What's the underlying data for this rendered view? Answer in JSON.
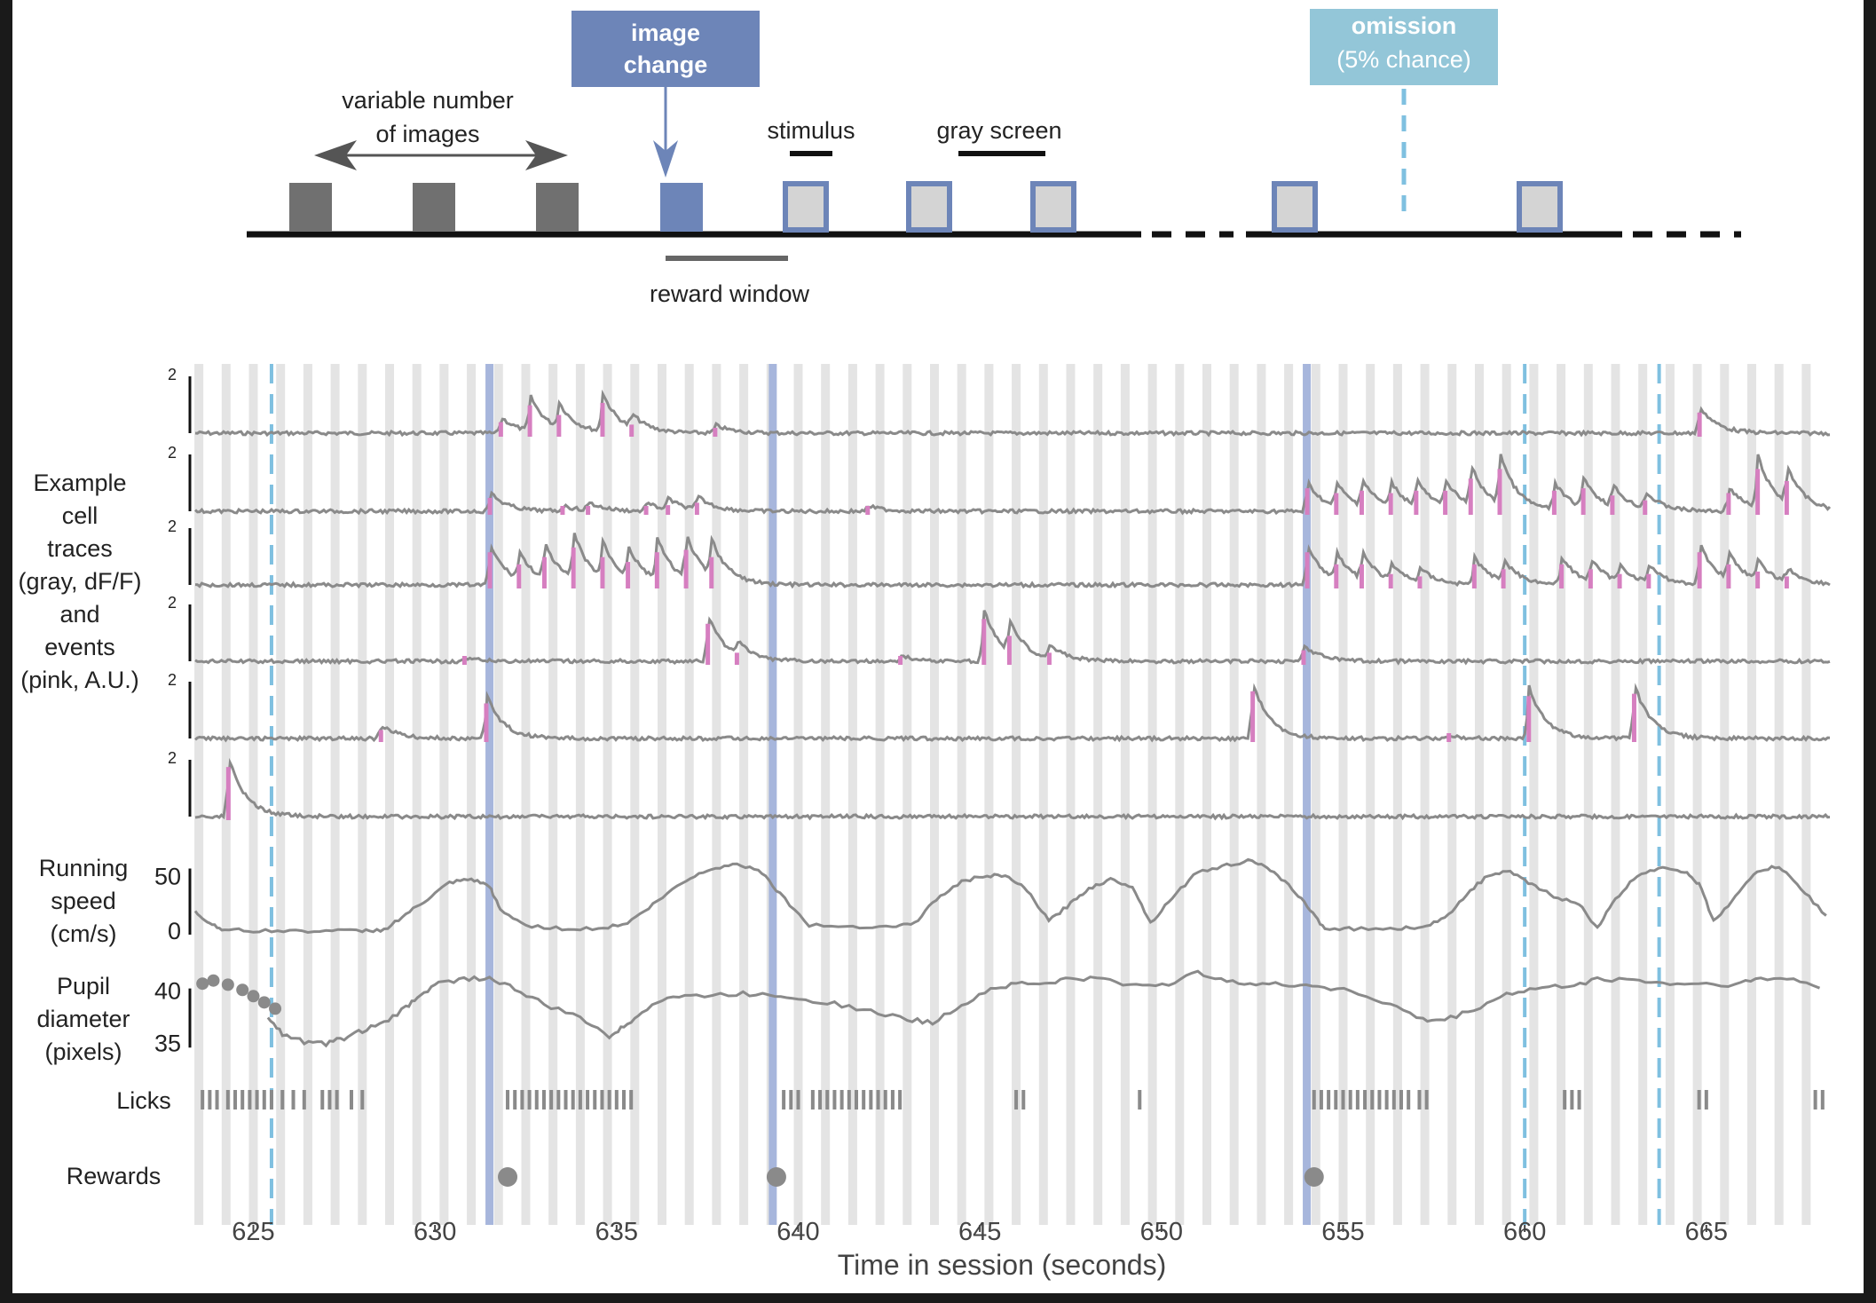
{
  "schematic": {
    "image_change": [
      "image",
      "change"
    ],
    "omission": [
      "omission",
      "(5% chance)"
    ],
    "variable_number": [
      "variable number",
      "of images"
    ],
    "stimulus": "stimulus",
    "gray_screen": "gray screen",
    "reward_window": "reward window"
  },
  "row_labels": {
    "cells": [
      "Example",
      "cell",
      "traces",
      "(gray, dF/F)",
      "and",
      "events",
      "(pink, A.U.)"
    ],
    "running": [
      "Running",
      "speed",
      "(cm/s)"
    ],
    "pupil": [
      "Pupil",
      "diameter",
      "(pixels)"
    ],
    "licks": "Licks",
    "rewards": "Rewards"
  },
  "colors": {
    "image_change": "#6d85b8",
    "omission": "#93c6d8",
    "omission_line": "#7fc0e0",
    "stim_bar": "#e4e4e4",
    "change_line": "#a7b6dc",
    "trace": "#8a8a8a",
    "event": "#d67fc0",
    "gray_image": "#707070"
  },
  "chart_data": {
    "type": "line",
    "xlabel": "Time in session (seconds)",
    "xlim": [
      623.4,
      668.4
    ],
    "xticks": [
      625,
      630,
      635,
      640,
      645,
      650,
      655,
      660,
      665
    ],
    "stimulus_onsets_s": [
      623.5,
      624.25,
      625.0,
      625.75,
      626.5,
      627.25,
      628.0,
      628.75,
      629.5,
      630.25,
      631.0,
      631.75,
      632.5,
      633.25,
      634.0,
      634.75,
      635.5,
      636.25,
      637.0,
      637.75,
      638.5,
      639.25,
      640.0,
      640.75,
      641.5,
      642.25,
      643.0,
      643.75,
      644.5,
      645.25,
      646.0,
      646.75,
      647.5,
      648.25,
      649.0,
      649.75,
      650.5,
      651.25,
      652.0,
      652.75,
      653.5,
      654.25,
      655.0,
      655.75,
      656.5,
      657.25,
      658.0,
      658.75,
      659.5,
      660.25,
      661.0,
      661.75,
      662.5,
      663.25,
      664.0,
      664.75,
      665.5,
      666.25,
      667.0,
      667.75
    ],
    "image_changes_s": [
      631.5,
      639.3,
      654.0
    ],
    "omissions_s": [
      625.5,
      660.0,
      663.7
    ],
    "cell_traces": [
      {
        "scalebar": "2",
        "transients": [
          {
            "t": 631.8,
            "a": 0.6
          },
          {
            "t": 632.6,
            "a": 1.3
          },
          {
            "t": 633.4,
            "a": 0.9
          },
          {
            "t": 634.6,
            "a": 1.4
          },
          {
            "t": 635.4,
            "a": 0.5
          },
          {
            "t": 637.7,
            "a": 0.3
          },
          {
            "t": 664.8,
            "a": 1.0
          }
        ]
      },
      {
        "scalebar": "2",
        "transients": [
          {
            "t": 631.5,
            "a": 0.7
          },
          {
            "t": 633.5,
            "a": 0.2
          },
          {
            "t": 634.2,
            "a": 0.3
          },
          {
            "t": 635.8,
            "a": 0.3
          },
          {
            "t": 636.4,
            "a": 0.4
          },
          {
            "t": 637.2,
            "a": 0.5
          },
          {
            "t": 641.9,
            "a": 0.2
          },
          {
            "t": 654.0,
            "a": 1.1
          },
          {
            "t": 654.8,
            "a": 0.9
          },
          {
            "t": 655.5,
            "a": 1.0
          },
          {
            "t": 656.3,
            "a": 0.9
          },
          {
            "t": 657.0,
            "a": 1.0
          },
          {
            "t": 657.8,
            "a": 1.0
          },
          {
            "t": 658.5,
            "a": 1.5
          },
          {
            "t": 659.3,
            "a": 1.9
          },
          {
            "t": 660.8,
            "a": 1.0
          },
          {
            "t": 661.6,
            "a": 1.1
          },
          {
            "t": 662.4,
            "a": 0.8
          },
          {
            "t": 663.3,
            "a": 0.6
          },
          {
            "t": 665.6,
            "a": 0.9
          },
          {
            "t": 666.4,
            "a": 1.9
          },
          {
            "t": 667.2,
            "a": 1.4
          }
        ]
      },
      {
        "scalebar": "2",
        "transients": [
          {
            "t": 631.5,
            "a": 1.5
          },
          {
            "t": 632.3,
            "a": 1.0
          },
          {
            "t": 633.0,
            "a": 1.3
          },
          {
            "t": 633.8,
            "a": 1.7
          },
          {
            "t": 634.6,
            "a": 1.3
          },
          {
            "t": 635.3,
            "a": 1.1
          },
          {
            "t": 636.1,
            "a": 1.5
          },
          {
            "t": 636.9,
            "a": 1.6
          },
          {
            "t": 637.6,
            "a": 1.3
          },
          {
            "t": 654.0,
            "a": 1.5
          },
          {
            "t": 654.8,
            "a": 1.0
          },
          {
            "t": 655.5,
            "a": 1.0
          },
          {
            "t": 656.3,
            "a": 0.6
          },
          {
            "t": 657.1,
            "a": 0.5
          },
          {
            "t": 658.6,
            "a": 1.0
          },
          {
            "t": 659.4,
            "a": 0.8
          },
          {
            "t": 661.0,
            "a": 1.0
          },
          {
            "t": 661.8,
            "a": 0.8
          },
          {
            "t": 662.6,
            "a": 0.6
          },
          {
            "t": 663.4,
            "a": 0.6
          },
          {
            "t": 664.8,
            "a": 1.5
          },
          {
            "t": 665.6,
            "a": 1.0
          },
          {
            "t": 666.4,
            "a": 0.7
          },
          {
            "t": 667.2,
            "a": 0.5
          }
        ]
      },
      {
        "scalebar": "2",
        "transients": [
          {
            "t": 630.8,
            "a": 0.1
          },
          {
            "t": 637.5,
            "a": 1.7
          },
          {
            "t": 638.3,
            "a": 0.5
          },
          {
            "t": 642.8,
            "a": 0.2
          },
          {
            "t": 645.1,
            "a": 1.9
          },
          {
            "t": 645.8,
            "a": 1.2
          },
          {
            "t": 646.9,
            "a": 0.5
          },
          {
            "t": 653.9,
            "a": 0.6
          }
        ]
      },
      {
        "scalebar": "2",
        "transients": [
          {
            "t": 628.5,
            "a": 0.5
          },
          {
            "t": 631.4,
            "a": 1.6
          },
          {
            "t": 652.5,
            "a": 2.1
          },
          {
            "t": 657.9,
            "a": 0.1
          },
          {
            "t": 660.1,
            "a": 1.9
          },
          {
            "t": 663.0,
            "a": 2.0
          }
        ]
      },
      {
        "scalebar": "2",
        "transients": [
          {
            "t": 624.3,
            "a": 2.2
          }
        ]
      }
    ],
    "running_speed": {
      "ylabel": "Running speed (cm/s)",
      "yticks": [
        0,
        50
      ],
      "ylim": [
        0,
        65
      ],
      "t": [
        623.4,
        623.8,
        624.2,
        625,
        626,
        627,
        628,
        628.6,
        629.2,
        629.8,
        630.4,
        631,
        631.5,
        631.8,
        632.5,
        633.5,
        634.5,
        635.3,
        636,
        636.8,
        637.5,
        638.2,
        638.9,
        639.5,
        640.3,
        641.5,
        642.6,
        643.2,
        643.8,
        644.5,
        645.2,
        645.8,
        646.3,
        646.9,
        647.5,
        648,
        648.6,
        649.2,
        649.7,
        650.3,
        651,
        651.8,
        652.5,
        653,
        653.6,
        654.1,
        654.5,
        655.3,
        656.5,
        657.2,
        657.8,
        658.4,
        659,
        659.6,
        660.2,
        660.8,
        661.5,
        662,
        662.5,
        663.1,
        663.8,
        664.4,
        664.8,
        665.2,
        665.8,
        666.4,
        667,
        667.6,
        668.3
      ],
      "v": [
        18,
        8,
        2,
        1,
        1,
        1,
        1,
        2,
        16,
        30,
        45,
        48,
        42,
        20,
        6,
        3,
        3,
        8,
        25,
        45,
        57,
        62,
        58,
        35,
        6,
        5,
        5,
        8,
        30,
        46,
        52,
        50,
        38,
        10,
        26,
        40,
        48,
        42,
        8,
        32,
        55,
        61,
        66,
        56,
        40,
        20,
        3,
        3,
        3,
        5,
        12,
        35,
        52,
        55,
        43,
        33,
        25,
        4,
        30,
        52,
        60,
        55,
        44,
        10,
        32,
        56,
        60,
        40,
        15
      ]
    },
    "pupil_diameter": {
      "ylabel": "Pupil diameter (pixels)",
      "yticks": [
        35,
        40
      ],
      "ylim": [
        34,
        41.5
      ],
      "t": [
        625.4,
        625.8,
        626.4,
        627,
        627.5,
        628,
        628.6,
        629.2,
        629.6,
        630.1,
        630.8,
        631.5,
        632.2,
        633,
        634,
        634.8,
        635.2,
        635.7,
        636.4,
        637.2,
        638.3,
        639.2,
        640,
        641,
        642,
        643,
        643.7,
        644.5,
        645.3,
        646,
        646.8,
        647.5,
        648.4,
        649.3,
        650.2,
        651,
        651.8,
        652.6,
        653.5,
        654.3,
        655.2,
        656.3,
        657.2,
        657.8,
        658.6,
        659.5,
        660.3,
        661.2,
        662,
        663,
        663.8,
        664.8,
        665.8,
        666.5,
        667.4,
        668.3
      ],
      "v": [
        37.5,
        36,
        35.2,
        35.0,
        35.6,
        36.3,
        37.0,
        38.5,
        39.8,
        40.8,
        41.3,
        41.3,
        40.3,
        38.8,
        37.5,
        35.8,
        36.6,
        38.2,
        39.5,
        39.6,
        39.8,
        39.8,
        39.4,
        38.9,
        38.1,
        37.4,
        37.0,
        38.8,
        40.3,
        40.8,
        40.8,
        41.3,
        41.2,
        40.6,
        40.8,
        41.8,
        41.2,
        40.7,
        40.7,
        40.6,
        40.1,
        38.8,
        37.3,
        37.3,
        38.3,
        39.8,
        40.3,
        40.6,
        41.2,
        41.2,
        40.8,
        40.8,
        40.7,
        41.3,
        41.2,
        40.3
      ],
      "dots": [
        {
          "t": 623.6,
          "v": 40.8
        },
        {
          "t": 623.9,
          "v": 41.1
        },
        {
          "t": 624.3,
          "v": 40.7
        },
        {
          "t": 624.7,
          "v": 40.2
        },
        {
          "t": 625.0,
          "v": 39.6
        },
        {
          "t": 625.3,
          "v": 39.0
        },
        {
          "t": 625.6,
          "v": 38.4
        }
      ]
    },
    "licks_s": [
      623.6,
      623.8,
      624.0,
      624.3,
      624.5,
      624.7,
      624.9,
      625.1,
      625.3,
      625.5,
      625.8,
      626.1,
      626.4,
      626.9,
      627.1,
      627.3,
      627.7,
      628.0,
      632.0,
      632.2,
      632.4,
      632.6,
      632.8,
      633.0,
      633.2,
      633.4,
      633.6,
      633.8,
      634.0,
      634.2,
      634.4,
      634.6,
      634.8,
      635.0,
      635.2,
      635.4,
      639.6,
      639.8,
      640.0,
      640.4,
      640.6,
      640.8,
      641.0,
      641.2,
      641.4,
      641.6,
      641.8,
      642.0,
      642.2,
      642.4,
      642.6,
      642.8,
      646.0,
      646.2,
      649.4,
      654.2,
      654.4,
      654.6,
      654.8,
      655.0,
      655.2,
      655.4,
      655.6,
      655.8,
      656.0,
      656.2,
      656.4,
      656.6,
      656.8,
      657.1,
      657.3,
      661.1,
      661.3,
      661.5,
      664.8,
      665.0,
      668.0,
      668.2
    ],
    "rewards_s": [
      632.0,
      639.4,
      654.2
    ]
  }
}
